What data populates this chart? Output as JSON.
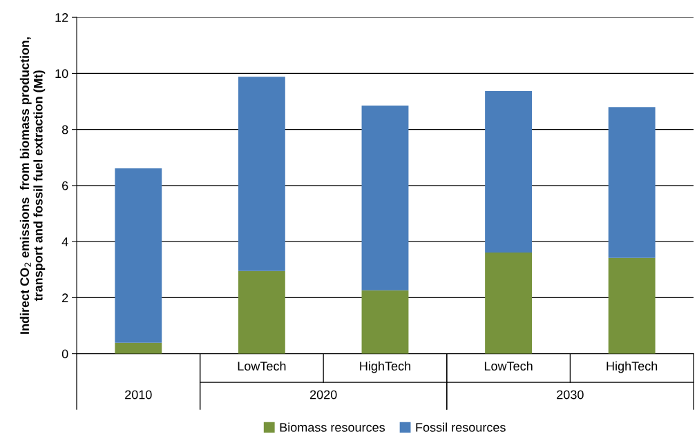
{
  "chart_data": {
    "type": "bar",
    "stacked": true,
    "ylabel": "Indirect CO$_{2}$ emissions  from biomass production,\ntransport and fossil fuel extraction (Mt)",
    "categories": [
      null,
      "LowTech",
      "HighTech",
      "LowTech",
      "HighTech"
    ],
    "series": [
      {
        "name": "Biomass resources",
        "color": "#77933c",
        "values": [
          0.39,
          2.95,
          2.26,
          3.61,
          3.42
        ]
      },
      {
        "name": "Fossil resources",
        "color": "#4a7ebb",
        "values": [
          6.22,
          6.93,
          6.59,
          5.76,
          5.38
        ]
      }
    ],
    "annotations": [
      "2010",
      "2020",
      "2030"
    ],
    "ylim": [
      0,
      12
    ],
    "yticks": [
      0,
      2,
      4,
      6,
      8,
      10,
      12
    ],
    "grid": "y",
    "legend": "bottom"
  }
}
